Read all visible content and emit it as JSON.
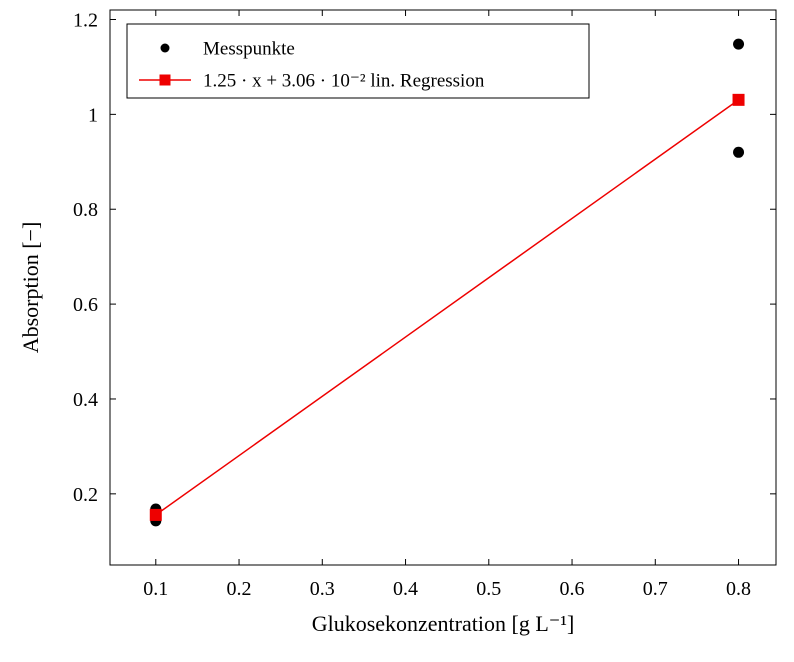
{
  "chart_data": {
    "type": "scatter",
    "title": "",
    "xlabel": "Glukosekonzentration [g L⁻¹]",
    "ylabel": "Absorption [−]",
    "xlim": [
      0.045,
      0.845
    ],
    "ylim": [
      0.05,
      1.22
    ],
    "grid": false,
    "background_color": "#ffffff",
    "frame_color": "#000000",
    "legend_position": "top-left",
    "xticks": {
      "values": [
        0.1,
        0.2,
        0.3,
        0.4,
        0.5,
        0.6,
        0.7,
        0.8
      ],
      "labels": [
        "0.1",
        "0.2",
        "0.3",
        "0.4",
        "0.5",
        "0.6",
        "0.7",
        "0.8"
      ]
    },
    "yticks": {
      "values": [
        0.2,
        0.4,
        0.6,
        0.8,
        1.0,
        1.2
      ],
      "labels": [
        "0.2",
        "0.4",
        "0.6",
        "0.8",
        "1",
        "1.2"
      ]
    },
    "series": [
      {
        "name": "Messpunkte",
        "type": "scatter",
        "marker": "circle",
        "color": "#000000",
        "points": [
          [
            0.1,
            0.143
          ],
          [
            0.1,
            0.168
          ],
          [
            0.8,
            0.92
          ],
          [
            0.8,
            1.148
          ]
        ]
      },
      {
        "name": "1.25 · x + 3.06 · 10⁻² lin. Regression",
        "type": "line",
        "marker": "square",
        "color": "#ee0000",
        "equation": "y = 1.25 · x + 3.06 · 10⁻²",
        "points": [
          [
            0.1,
            0.1556
          ],
          [
            0.8,
            1.0306
          ]
        ]
      }
    ]
  }
}
